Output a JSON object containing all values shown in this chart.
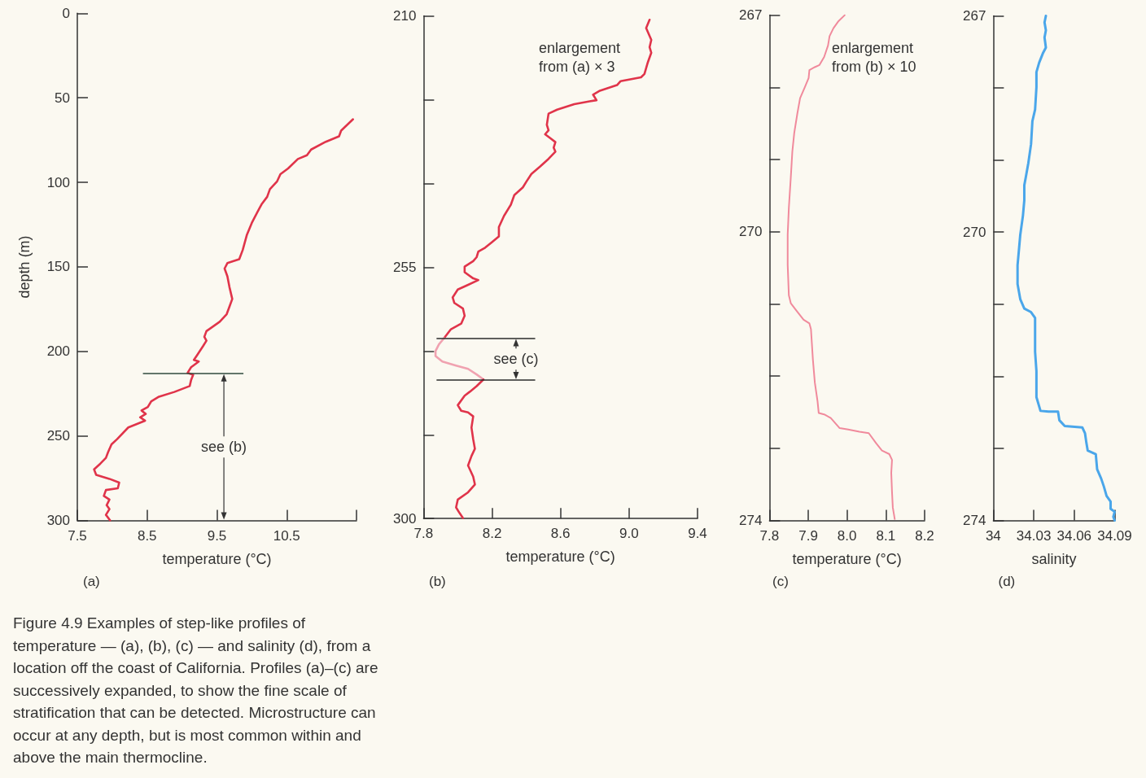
{
  "chart_data": [
    {
      "type": "line",
      "title": "(a)",
      "xlabel": "temperature (°C)",
      "ylabel": "depth (m)",
      "series": [
        {
          "color": "#e0344a",
          "x": [
            11.45,
            11.28,
            11.25,
            11.06,
            10.85,
            10.79,
            10.66,
            10.52,
            10.41,
            10.36,
            10.26,
            10.22,
            10.14,
            10.08,
            10.0,
            9.93,
            9.87,
            9.82,
            9.65,
            9.61,
            9.65,
            9.68,
            9.72,
            9.68,
            9.64,
            9.54,
            9.35,
            9.32,
            9.35,
            9.3,
            9.21,
            9.17,
            9.24,
            9.13,
            9.08,
            9.16,
            9.13,
            9.11,
            8.89,
            8.67,
            8.56,
            8.51,
            8.42,
            8.48,
            8.4,
            8.47,
            8.23,
            8.07,
            7.99,
            7.94,
            7.91,
            7.83,
            7.74,
            7.77,
            7.96,
            8.1,
            8.08,
            7.91,
            7.88,
            7.96,
            7.92,
            7.96,
            7.91,
            7.97
          ],
          "values": [
            62.7,
            69.4,
            72.8,
            76.0,
            80.6,
            84.0,
            86.2,
            91.8,
            95.2,
            99.6,
            104.0,
            108.6,
            113.0,
            117.6,
            124.0,
            131.0,
            140.0,
            145.5,
            147.8,
            151.0,
            155.6,
            162.0,
            169.0,
            173.5,
            178.0,
            182.5,
            188.0,
            191.4,
            193.7,
            197.0,
            202.6,
            205.0,
            206.0,
            209.4,
            212.7,
            213.8,
            217.0,
            220.5,
            224.0,
            226.8,
            229.5,
            232.9,
            235.0,
            237.0,
            239.0,
            241.0,
            245.0,
            251.9,
            255.0,
            259.7,
            263.0,
            266.4,
            269.8,
            273.0,
            275.4,
            277.6,
            281.0,
            282.0,
            285.5,
            287.7,
            291.0,
            293.3,
            296.7,
            300.0
          ]
        }
      ],
      "xlim": [
        7.5,
        11.5
      ],
      "xticks": [
        7.5,
        8.5,
        9.5,
        10.5,
        {
          "value": 11.5,
          "label": null
        }
      ],
      "ylim": [
        300,
        0
      ],
      "yticks": [
        0,
        50,
        100,
        150,
        200,
        250,
        300
      ],
      "ref_lines": [
        {
          "axis": "y",
          "value": 213,
          "color": "#2f4a3c"
        }
      ],
      "annotations": [
        "see (b)",
        "Figure 4.9 Examples of step-like profiles of temperature — (a), (b), (c) — and salinity (d), from a location off the coast of California. Profiles (a)–(c) are successively expanded, to show the fine scale of stratification that can be detected. Microstructure can occur at any depth, but is most common within and above the main thermocline."
      ]
    },
    {
      "type": "line",
      "title": "(b)",
      "xlabel": "temperature (°C)",
      "series": [
        {
          "color": "#e0344a",
          "x": [
            9.12,
            9.1,
            9.13,
            9.12,
            9.13,
            9.11,
            9.09,
            9.07,
            8.95,
            8.93,
            8.83,
            8.79,
            8.81,
            8.77,
            8.68,
            8.58,
            8.53,
            8.52,
            8.53,
            8.51,
            8.54,
            8.57,
            8.56,
            8.57,
            8.53,
            8.48,
            8.43,
            8.4,
            8.38,
            8.33,
            8.31,
            8.27,
            8.24,
            8.24,
            8.2,
            8.16,
            8.12,
            8.11,
            8.09,
            8.04,
            8.04,
            8.09,
            8.12,
            8.05,
            8.0,
            7.97,
            7.98,
            8.03,
            8.04,
            8.02,
            7.96,
            7.92
          ],
          "values": [
            210.7,
            212.2,
            214.3,
            215.6,
            216.6,
            218.3,
            220.4,
            221.0,
            221.7,
            222.4,
            223.4,
            224.1,
            225.1,
            225.3,
            225.8,
            226.8,
            227.5,
            229.5,
            230.5,
            231.2,
            231.9,
            232.6,
            233.6,
            234.3,
            235.6,
            237.0,
            238.3,
            239.7,
            240.7,
            242.1,
            243.8,
            245.8,
            247.8,
            249.5,
            250.5,
            251.5,
            252.2,
            253.2,
            253.9,
            254.9,
            255.9,
            257.0,
            257.3,
            258.3,
            259.0,
            260.4,
            261.4,
            262.4,
            263.7,
            265.1,
            266.1,
            267.7
          ]
        },
        {
          "color": "#f0a2b0",
          "x": [
            7.92,
            7.89,
            7.87,
            7.87,
            7.91,
            7.99,
            8.06,
            8.11,
            8.15
          ],
          "values": [
            267.7,
            268.8,
            270.0,
            270.9,
            271.9,
            272.6,
            273.2,
            274.2,
            275.1
          ]
        },
        {
          "color": "#e0344a",
          "x": [
            8.15,
            8.11,
            8.07,
            8.04,
            8.0,
            8.02,
            8.06,
            8.09,
            8.08,
            8.09,
            8.1,
            8.08,
            8.06,
            8.09,
            8.1,
            8.06,
            8.0,
            7.99,
            8.01,
            8.03
          ],
          "values": [
            275.1,
            276.3,
            277.3,
            278.0,
            279.7,
            280.7,
            281.0,
            281.7,
            283.7,
            285.8,
            287.5,
            288.8,
            290.5,
            292.5,
            293.9,
            295.3,
            296.6,
            298.0,
            299.0,
            299.9
          ]
        }
      ],
      "xlim": [
        7.8,
        9.4
      ],
      "xticks": [
        7.8,
        8.2,
        8.6,
        {
          "value": 9,
          "label": "9.0"
        },
        9.4
      ],
      "ylim": [
        300,
        210
      ],
      "yticks": [
        210,
        {
          "value": 225,
          "label": null
        },
        {
          "value": 240,
          "label": null
        },
        255,
        {
          "value": 270,
          "label": null
        },
        {
          "value": 285,
          "label": null
        },
        300
      ],
      "ref_lines": [
        {
          "axis": "y",
          "value": 267.7,
          "color": "#2a2a2a"
        },
        {
          "axis": "y",
          "value": 275.2,
          "color": "#2a2a2a"
        }
      ],
      "annotations": [
        "see (c)",
        "enlargement from (a) × 3"
      ]
    },
    {
      "type": "line",
      "title": "(c)",
      "xlabel": "temperature (°C)",
      "series": [
        {
          "color": "#f08a9c",
          "x": [
            7.994,
            7.977,
            7.965,
            7.955,
            7.951,
            7.941,
            7.929,
            7.917,
            7.903,
            7.901,
            7.891,
            7.879,
            7.872,
            7.864,
            7.859,
            7.855,
            7.85,
            7.847,
            7.847,
            7.85,
            7.855,
            7.869,
            7.888,
            7.903,
            7.907,
            7.912,
            7.917,
            7.924,
            7.927,
            7.941,
            7.958,
            7.981,
            8.003,
            8.032,
            8.056,
            8.075,
            8.09,
            8.109,
            8.116,
            8.114,
            8.116,
            8.118,
            8.123
          ],
          "values": [
            267.0,
            267.09,
            267.18,
            267.29,
            267.42,
            267.58,
            267.69,
            267.72,
            267.76,
            267.87,
            268.0,
            268.15,
            268.36,
            268.63,
            268.89,
            269.25,
            269.67,
            270.04,
            270.46,
            270.88,
            270.99,
            271.09,
            271.22,
            271.27,
            271.35,
            271.77,
            272.09,
            272.35,
            272.51,
            272.53,
            272.58,
            272.72,
            272.74,
            272.77,
            272.79,
            272.93,
            273.03,
            273.08,
            273.16,
            273.34,
            273.61,
            273.82,
            273.98
          ]
        }
      ],
      "xlim": [
        7.8,
        8.2
      ],
      "xticks": [
        7.8,
        7.9,
        {
          "value": 8,
          "label": "8.0"
        },
        8.1,
        8.2
      ],
      "ylim": [
        274,
        267
      ],
      "yticks": [
        267,
        {
          "value": 268,
          "label": null
        },
        {
          "value": 269,
          "label": null
        },
        270,
        {
          "value": 271,
          "label": null
        },
        {
          "value": 272,
          "label": null
        },
        {
          "value": 273,
          "label": null
        },
        274
      ],
      "annotations": [
        "enlargement from (b) × 10"
      ]
    },
    {
      "type": "line",
      "title": "(d)",
      "xlabel": "salinity",
      "series": [
        {
          "color": "#4aa6ea",
          "x": [
            34.039,
            34.038,
            34.039,
            34.038,
            34.039,
            34.037,
            34.034,
            34.032,
            34.032,
            34.031,
            34.029,
            34.028,
            34.026,
            34.024,
            34.023,
            34.023,
            34.022,
            34.02,
            34.019,
            34.018,
            34.018,
            34.02,
            34.023,
            34.028,
            34.031,
            34.031,
            34.031,
            34.032,
            34.032,
            34.035,
            34.041,
            34.048,
            34.049,
            34.053,
            34.066,
            34.068,
            34.069,
            34.07,
            34.076,
            34.077,
            34.08,
            34.082,
            34.084,
            34.087,
            34.087,
            34.09,
            34.089,
            34.09
          ],
          "values": [
            267.0,
            267.09,
            267.2,
            267.3,
            267.44,
            267.51,
            267.65,
            267.78,
            267.99,
            268.3,
            268.46,
            268.78,
            269.04,
            269.25,
            269.35,
            269.56,
            269.77,
            270.04,
            270.25,
            270.46,
            270.72,
            270.93,
            271.06,
            271.11,
            271.19,
            271.3,
            271.66,
            271.93,
            272.29,
            272.48,
            272.49,
            272.49,
            272.61,
            272.69,
            272.71,
            272.79,
            272.92,
            273.03,
            273.08,
            273.29,
            273.42,
            273.53,
            273.66,
            273.74,
            273.84,
            273.88,
            273.95,
            274.0
          ]
        }
      ],
      "xlim": [
        34,
        34.09
      ],
      "xticks": [
        34,
        34.03,
        34.06,
        34.09
      ],
      "ylim": [
        274,
        267
      ],
      "yticks": [
        267,
        {
          "value": 268,
          "label": null
        },
        {
          "value": 269,
          "label": null
        },
        270,
        {
          "value": 271,
          "label": null
        },
        {
          "value": 272,
          "label": null
        },
        {
          "value": 273,
          "label": null
        },
        274
      ]
    }
  ]
}
